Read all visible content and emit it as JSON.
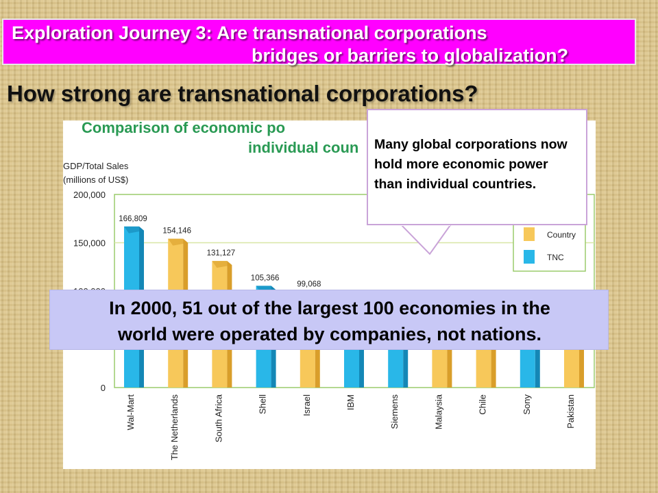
{
  "slide": {
    "title_line1": "Exploration Journey 3: Are transnational corporations",
    "title_line2": "bridges or barriers to globalization?",
    "subtitle": "How strong are transnational corporations?"
  },
  "callout": {
    "text": "Many global corporations now hold more economic power than individual countries."
  },
  "banner": {
    "line1": "In 2000, 51 out of the largest 100 economies in the",
    "line2": "world were operated by companies, not nations."
  },
  "colors": {
    "title_bg": "#ff00ff",
    "country": "#f7c85a",
    "tnc": "#29b7e8",
    "chart_title": "#2a9a54"
  },
  "chart_data": {
    "type": "bar",
    "title_line1": "Comparison of economic po",
    "title_line2": "individual coun",
    "ylabel_line1": "GDP/Total Sales",
    "ylabel_line2": "(millions of US$)",
    "yticks": [
      "200,000",
      "150,000",
      "100,000",
      "0"
    ],
    "ylim": [
      0,
      200000
    ],
    "categories": [
      "Wal-Mart",
      "The Netherlands",
      "South Africa",
      "Shell",
      "Israel",
      "IBM",
      "Siemens",
      "Malaysia",
      "Chile",
      "Sony",
      "Pakistan"
    ],
    "kinds": [
      "TNC",
      "Country",
      "Country",
      "TNC",
      "Country",
      "TNC",
      "TNC",
      "Country",
      "Country",
      "TNC",
      "Country"
    ],
    "values": [
      166809,
      154146,
      131127,
      105366,
      99068,
      90000,
      80000,
      76000,
      71000,
      63000,
      62000
    ],
    "value_labels": [
      "166,809",
      "154,146",
      "131,127",
      "105,366",
      "99,068",
      "",
      "",
      "",
      "",
      "",
      ""
    ],
    "legend": [
      {
        "name": "Country",
        "kind": "Country"
      },
      {
        "name": "TNC",
        "kind": "TNC"
      }
    ]
  }
}
